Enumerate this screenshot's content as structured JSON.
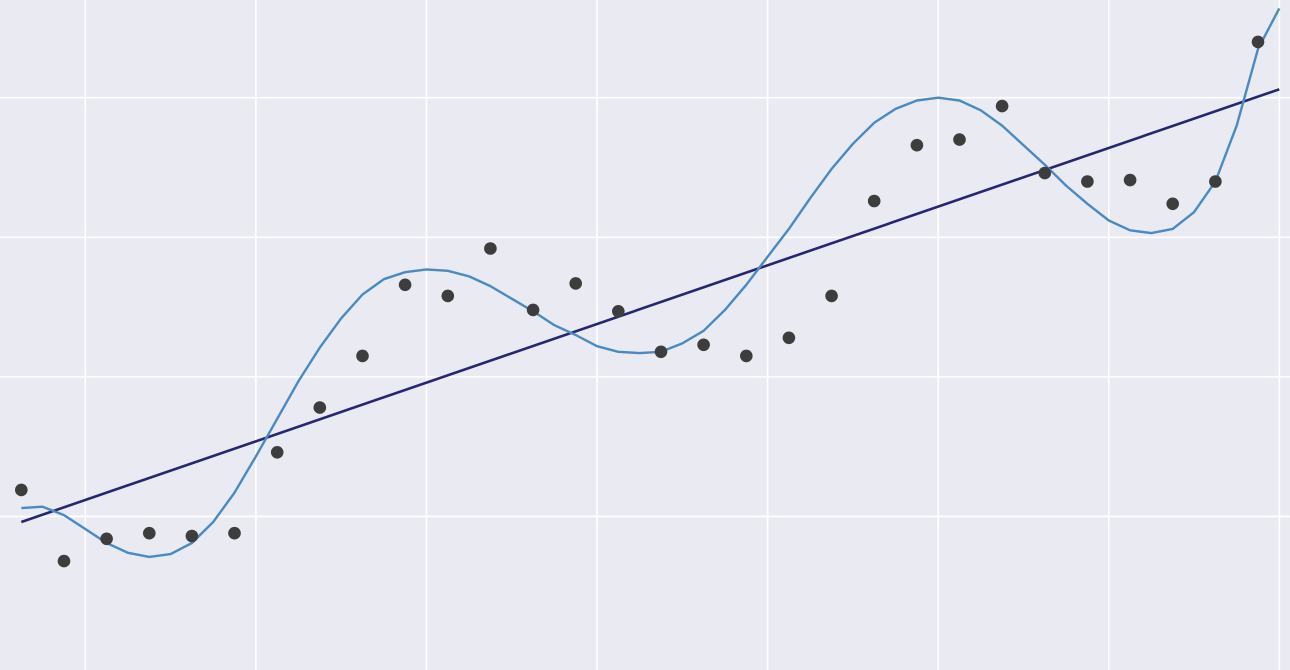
{
  "chart_data": {
    "type": "scatter",
    "title": "",
    "xlabel": "",
    "ylabel": "",
    "xlim": [
      -0.5,
      29.75
    ],
    "ylim": [
      -1.1,
      3.7
    ],
    "grid": true,
    "x_gridlines": [
      1.5,
      5.5,
      9.5,
      13.5,
      17.5,
      21.5,
      25.5,
      29.5
    ],
    "y_gridlines": [
      0,
      1,
      2,
      3
    ],
    "colors": {
      "background": "#eaeaf2",
      "grid": "#ffffff",
      "points": "#3d3d3d",
      "linear_fit": "#262672",
      "poly_fit": "#4a8ac0"
    },
    "series": [
      {
        "type": "scatter",
        "x": [
          0,
          1,
          2,
          3,
          4,
          5,
          6,
          7,
          8,
          9,
          10,
          11,
          12,
          13,
          14,
          15,
          16,
          17,
          18,
          19,
          20,
          21,
          22,
          23,
          24,
          25,
          26,
          27,
          28,
          29
        ],
        "y": [
          0.19,
          -0.32,
          -0.16,
          -0.12,
          -0.14,
          -0.12,
          0.46,
          0.78,
          1.15,
          1.66,
          1.58,
          1.92,
          1.48,
          1.67,
          1.47,
          1.18,
          1.23,
          1.15,
          1.28,
          1.58,
          2.26,
          2.66,
          2.7,
          2.94,
          2.46,
          2.4,
          2.41,
          2.24,
          2.4,
          3.4
        ]
      },
      {
        "type": "line",
        "x": [
          0,
          29.5
        ],
        "y": [
          -0.04,
          3.06
        ]
      },
      {
        "type": "line",
        "x": [
          0,
          0.5,
          1,
          1.5,
          2,
          2.5,
          3,
          3.5,
          4,
          4.5,
          5,
          5.5,
          6,
          6.5,
          7,
          7.5,
          8,
          8.5,
          9,
          9.5,
          10,
          10.5,
          11,
          11.5,
          12,
          12.5,
          13,
          13.5,
          14,
          14.5,
          15,
          15.5,
          16,
          16.5,
          17,
          17.5,
          18,
          18.5,
          19,
          19.5,
          20,
          20.5,
          21,
          21.5,
          22,
          22.5,
          23,
          23.5,
          24,
          24.5,
          25,
          25.5,
          26,
          26.5,
          27,
          27.5,
          28,
          28.5,
          29,
          29.5
        ],
        "y": [
          0.06,
          0.07,
          0.01,
          -0.09,
          -0.19,
          -0.26,
          -0.29,
          -0.27,
          -0.19,
          -0.04,
          0.17,
          0.43,
          0.7,
          0.97,
          1.21,
          1.42,
          1.59,
          1.7,
          1.75,
          1.77,
          1.76,
          1.72,
          1.65,
          1.56,
          1.47,
          1.37,
          1.3,
          1.22,
          1.18,
          1.17,
          1.18,
          1.24,
          1.33,
          1.48,
          1.66,
          1.86,
          2.06,
          2.28,
          2.49,
          2.67,
          2.82,
          2.92,
          2.98,
          3.0,
          2.98,
          2.91,
          2.8,
          2.66,
          2.52,
          2.37,
          2.24,
          2.12,
          2.05,
          2.03,
          2.06,
          2.18,
          2.4,
          2.8,
          3.35,
          3.64
        ]
      }
    ]
  }
}
